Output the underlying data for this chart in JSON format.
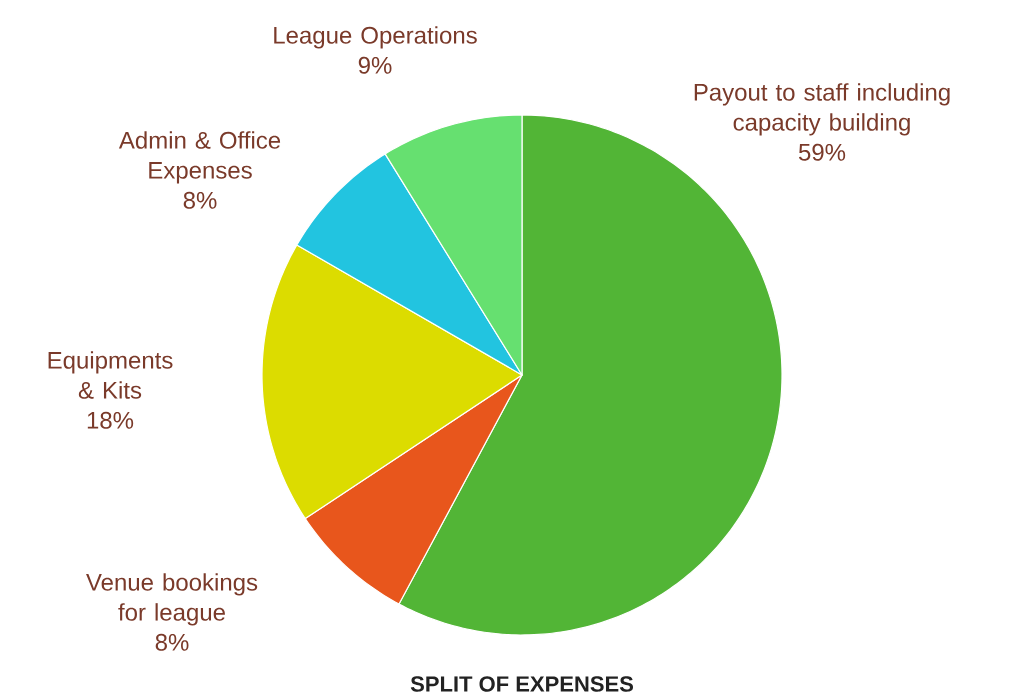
{
  "chart_data": {
    "type": "pie",
    "title": "SPLIT OF EXPENSES",
    "categories": [
      "Payout to staff including capacity building",
      "Venue bookings for league",
      "Equipments & Kits",
      "Admin & Office Expenses",
      "League Operations"
    ],
    "values": [
      59,
      8,
      18,
      8,
      9
    ],
    "value_labels": [
      "59%",
      "8%",
      "18%",
      "8%",
      "9%"
    ],
    "colors": [
      "#52b536",
      "#e8561c",
      "#dcdc00",
      "#22c4e0",
      "#66e070"
    ]
  }
}
